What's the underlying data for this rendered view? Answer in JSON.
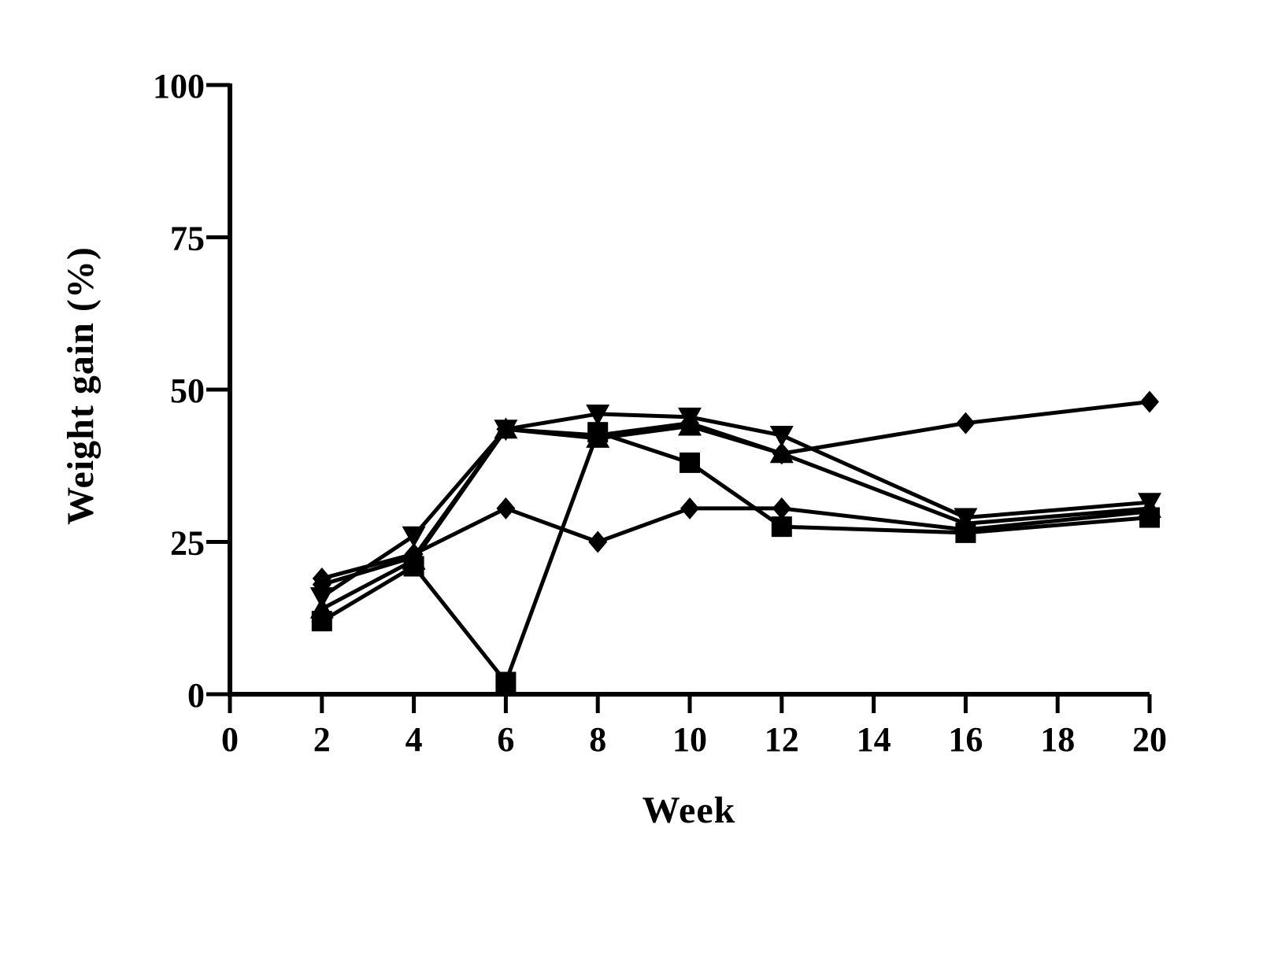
{
  "chart_data": {
    "type": "line",
    "title": "",
    "xlabel": "Week",
    "ylabel": "Weight gain (%)",
    "xlim": [
      0,
      20
    ],
    "ylim": [
      0,
      100
    ],
    "x_ticks": [
      "0",
      "2",
      "4",
      "6",
      "8",
      "10",
      "12",
      "14",
      "16",
      "18",
      "20"
    ],
    "y_ticks": [
      "0",
      "25",
      "50",
      "75",
      "100"
    ],
    "grid": false,
    "legend": "none",
    "x": [
      2,
      4,
      6,
      8,
      10,
      12,
      16,
      20
    ],
    "series": [
      {
        "marker": "square",
        "values": [
          12,
          21,
          2,
          43,
          38,
          27.5,
          26.5,
          29
        ]
      },
      {
        "marker": "triangle-up",
        "values": [
          14,
          22,
          43.5,
          42,
          44,
          39.5,
          28,
          30.5
        ]
      },
      {
        "marker": "triangle-down",
        "values": [
          16,
          26,
          43.5,
          46,
          45.5,
          42.5,
          29,
          31.5
        ]
      },
      {
        "marker": "diamond-a",
        "values": [
          19,
          23,
          30.5,
          25,
          30.5,
          30.5,
          27,
          30
        ]
      },
      {
        "marker": "diamond-b",
        "values": [
          18,
          22.5,
          43.5,
          42.5,
          44.5,
          39.5,
          44.5,
          48
        ]
      }
    ],
    "color": "#000000"
  }
}
